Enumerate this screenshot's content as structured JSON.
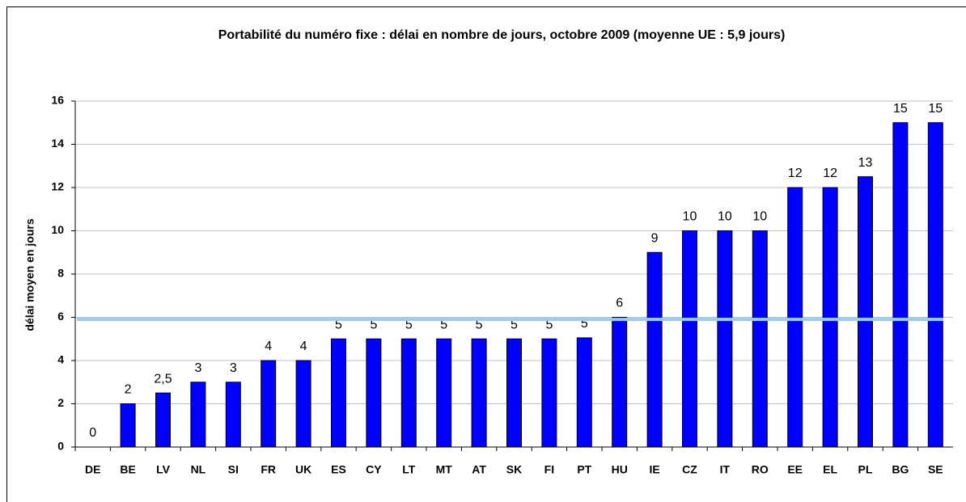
{
  "chart_data": {
    "type": "bar",
    "title": "Portabilité du numéro fixe : délai en nombre de jours, octobre 2009 (moyenne UE : 5,9 jours)",
    "ylabel": "délai moyen en jours",
    "categories": [
      "DE",
      "BE",
      "LV",
      "NL",
      "SI",
      "FR",
      "UK",
      "ES",
      "CY",
      "LT",
      "MT",
      "AT",
      "SK",
      "FI",
      "PT",
      "HU",
      "IE",
      "CZ",
      "IT",
      "RO",
      "EE",
      "EL",
      "PL",
      "BG",
      "SE"
    ],
    "values": [
      0,
      2,
      2.5,
      3,
      3,
      4,
      4,
      5,
      5,
      5,
      5,
      5,
      5,
      5,
      5.05,
      6,
      9,
      10,
      10,
      10,
      12,
      12,
      12.5,
      15,
      15
    ],
    "value_labels": [
      "0",
      "2",
      "2,5",
      "3",
      "3",
      "4",
      "4",
      "5",
      "5",
      "5",
      "5",
      "5",
      "5",
      "5",
      "5",
      "6",
      "9",
      "10",
      "10",
      "10",
      "12",
      "12",
      "13",
      "15",
      "15"
    ],
    "color": "#0000ff",
    "mean": 5.9,
    "mean_color": "#99ccee",
    "ylim": [
      0,
      16
    ],
    "yticks": [
      0,
      2,
      4,
      6,
      8,
      10,
      12,
      14,
      16
    ],
    "grid": true
  }
}
